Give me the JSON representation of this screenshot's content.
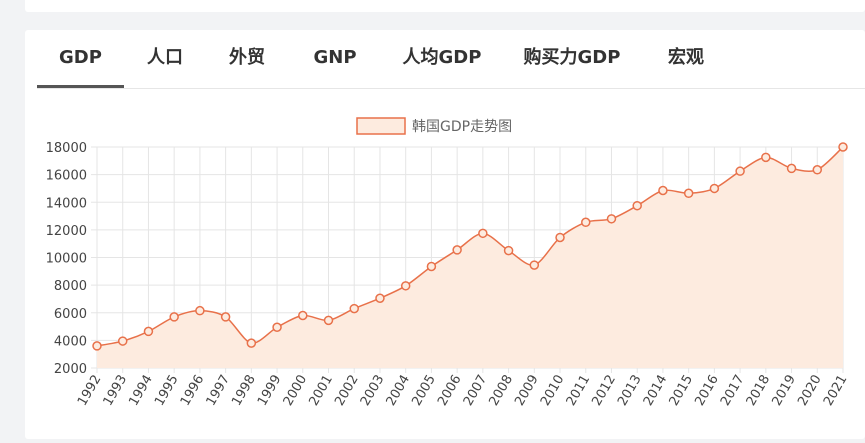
{
  "tabs": [
    "GDP",
    "人口",
    "外贸",
    "GNP",
    "人均GDP",
    "购买力GDP",
    "宏观"
  ],
  "active_tab": 0,
  "colors": {
    "line": "#e8714a",
    "fill": "#fdebdf",
    "grid": "#e5e5e5",
    "axis_text": "#444444"
  },
  "chart_data": {
    "type": "area",
    "title": "",
    "legend": [
      "韩国GDP走势图"
    ],
    "legend_position": "top-center",
    "grid": true,
    "x": [
      "1992",
      "1993",
      "1994",
      "1995",
      "1996",
      "1997",
      "1998",
      "1999",
      "2000",
      "2001",
      "2002",
      "2003",
      "2004",
      "2005",
      "2006",
      "2007",
      "2008",
      "2009",
      "2010",
      "2011",
      "2012",
      "2013",
      "2014",
      "2015",
      "2016",
      "2017",
      "2018",
      "2019",
      "2020",
      "2021"
    ],
    "series": [
      {
        "name": "韩国GDP走势图",
        "values": [
          3600,
          3950,
          4650,
          5700,
          6150,
          5700,
          3800,
          4950,
          5800,
          5450,
          6300,
          7050,
          7950,
          9350,
          10550,
          11750,
          10500,
          9450,
          11450,
          12550,
          12800,
          13750,
          14850,
          14650,
          15000,
          16250,
          17250,
          16450,
          16350,
          18000
        ]
      }
    ],
    "ylim": [
      2000,
      18000
    ],
    "yticks": [
      "18000",
      "16000",
      "14000",
      "12000",
      "10000",
      "8000",
      "6000",
      "4000",
      "2000"
    ],
    "xlabel": "",
    "ylabel": ""
  }
}
